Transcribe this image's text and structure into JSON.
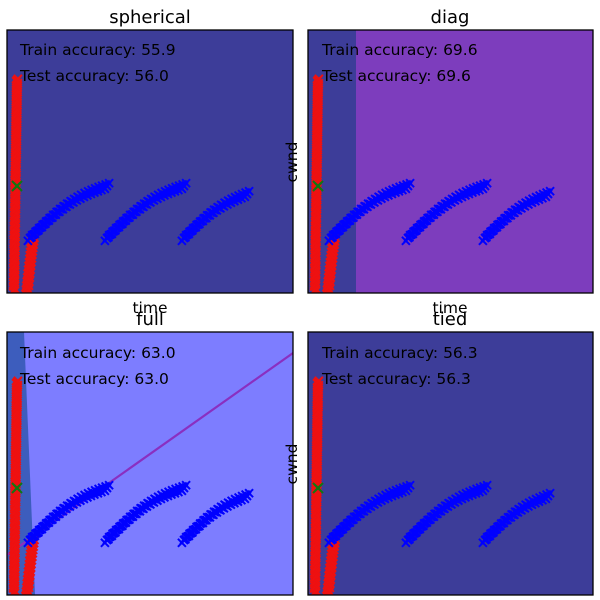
{
  "chart_data": [
    {
      "type": "scatter",
      "title": "spherical",
      "xlabel": "time",
      "ylabel": "",
      "texts": [
        "Train accuracy: 55.9",
        "Test accuracy: 56.0"
      ],
      "background": "#3d3d99"
    },
    {
      "type": "scatter",
      "title": "diag",
      "xlabel": "time",
      "ylabel": "cwnd",
      "texts": [
        "Train accuracy: 69.6",
        "Test accuracy: 69.6"
      ],
      "background": "#3d3d99",
      "region_color": "#7d3dbd"
    },
    {
      "type": "scatter",
      "title": "full",
      "xlabel": "",
      "ylabel": "",
      "texts": [
        "Train accuracy: 63.0",
        "Test accuracy: 63.0"
      ],
      "background": "#7d7dff",
      "region_color": "#3d5dbd",
      "boundary_color": "#8a2fc0"
    },
    {
      "type": "scatter",
      "title": "tied",
      "xlabel": "",
      "ylabel": "cwnd",
      "texts": [
        "Train accuracy: 56.3",
        "Test accuracy: 56.3"
      ],
      "background": "#3d3d99"
    }
  ],
  "colors": {
    "red_series": "#ee1111",
    "blue_series": "#0000ff",
    "green_marker": "#117711"
  }
}
